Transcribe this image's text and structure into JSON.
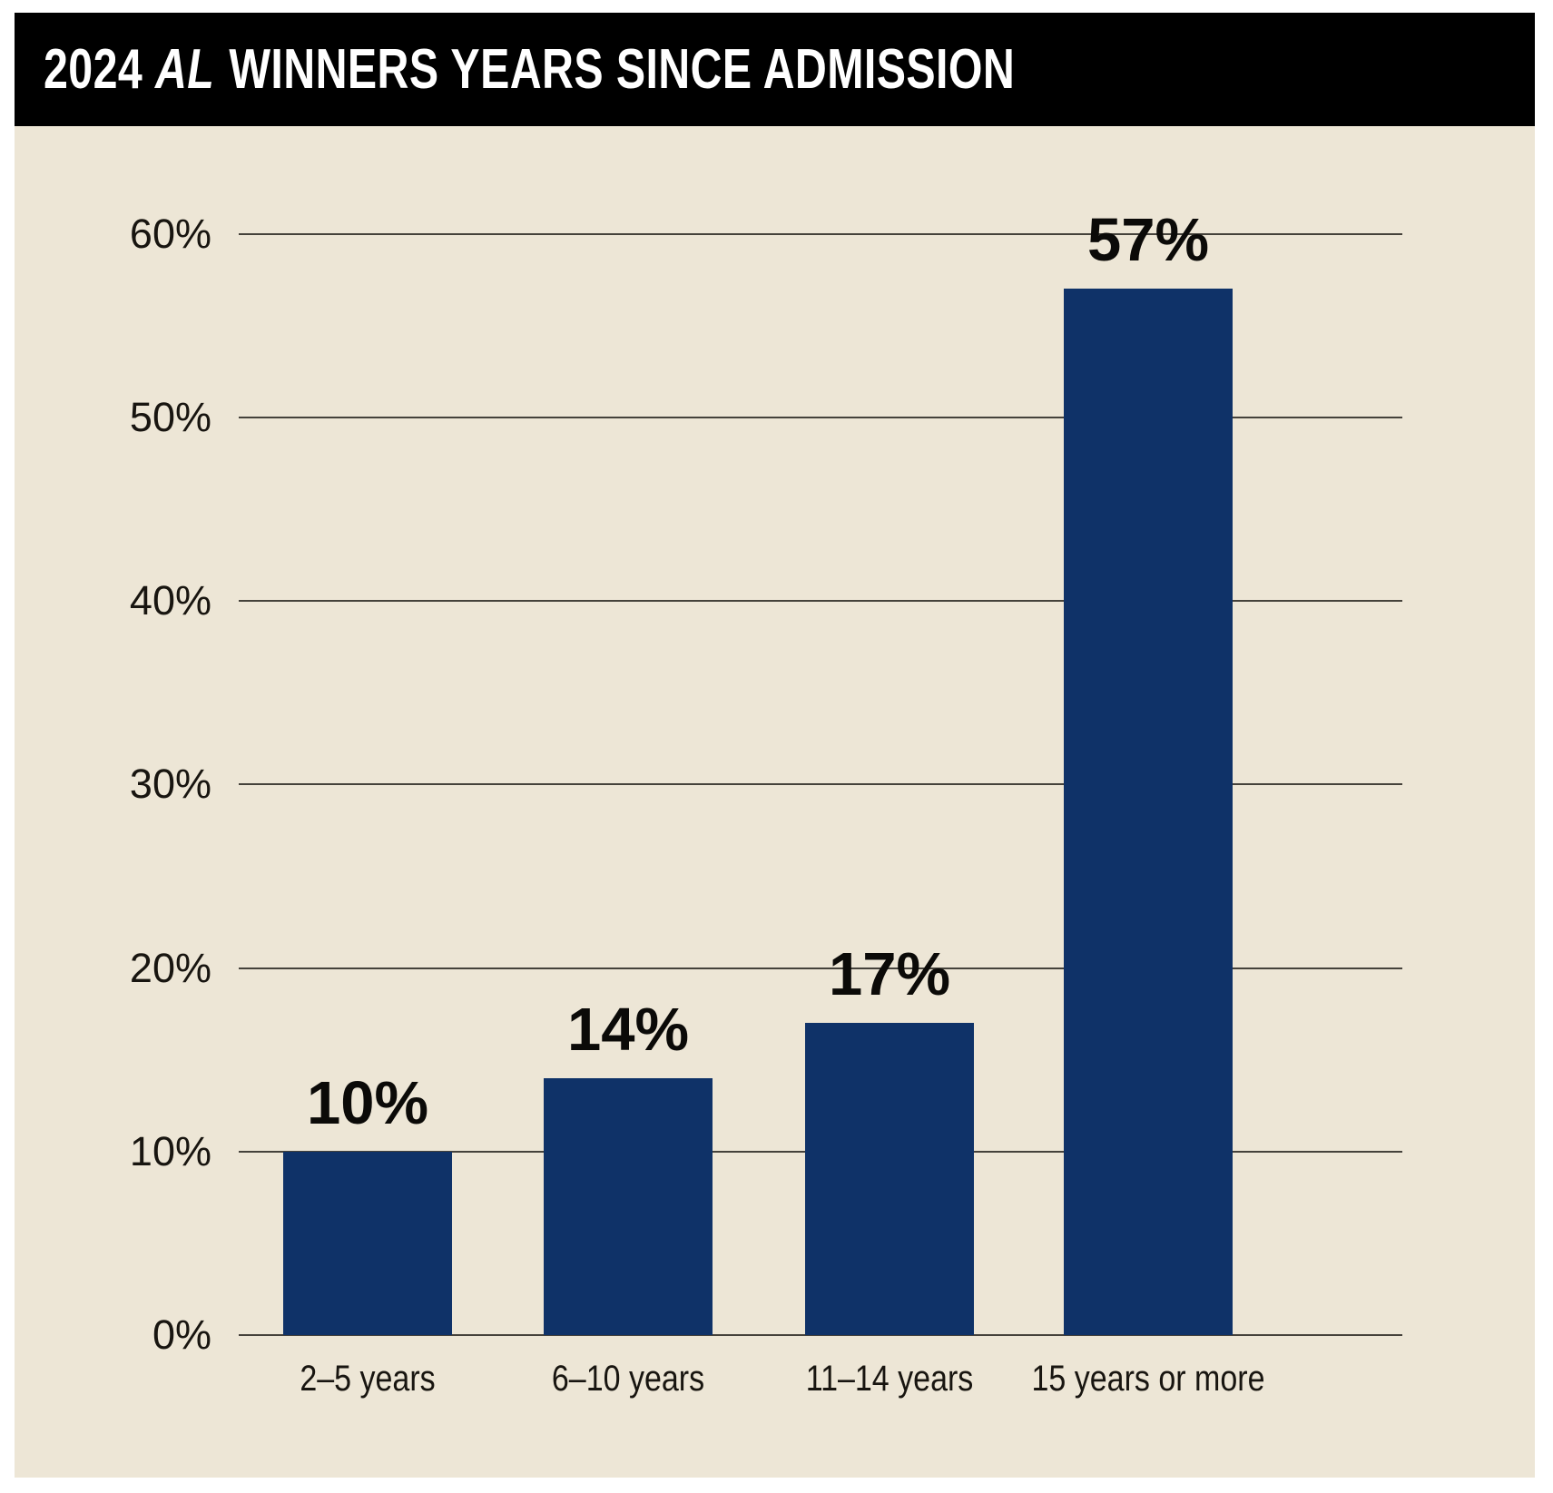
{
  "header": {
    "title_text": "2024 AL WINNERS YEARS SINCE ADMISSION",
    "title_parts": [
      {
        "text": "2024 ",
        "italic": false
      },
      {
        "text": "AL",
        "italic": true
      },
      {
        "text": " WINNERS YEARS SINCE ADMISSION",
        "italic": false
      }
    ],
    "background": "#000000",
    "text_color": "#ffffff"
  },
  "chart_data": {
    "type": "bar",
    "title": "2024 AL WINNERS YEARS SINCE ADMISSION",
    "categories": [
      "2–5 years",
      "6–10 years",
      "11–14 years",
      "15 years or more"
    ],
    "values": [
      10,
      14,
      17,
      57
    ],
    "value_labels": [
      "10%",
      "14%",
      "17%",
      "57%"
    ],
    "unit": "%",
    "xlabel": "",
    "ylabel": "",
    "ylim": [
      0,
      60
    ],
    "ytick_values": [
      0,
      10,
      20,
      30,
      40,
      50,
      60
    ],
    "ytick_labels": [
      "0%",
      "10%",
      "20%",
      "30%",
      "40%",
      "50%",
      "60%"
    ],
    "grid": "horizontal",
    "legend": false,
    "colors": {
      "bar": "#0f3268",
      "plot_background": "#ede6d6",
      "gridline": "#45423b",
      "text": "#181510"
    }
  }
}
